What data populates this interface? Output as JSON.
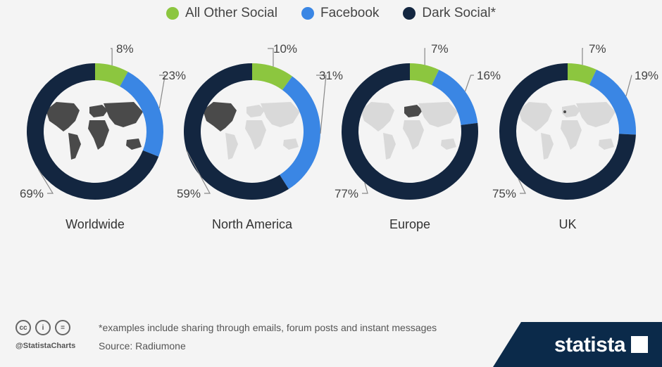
{
  "legend": [
    {
      "label": "All Other Social",
      "color": "#8cc63f"
    },
    {
      "label": "Facebook",
      "color": "#3a86e4"
    },
    {
      "label": "Dark Social*",
      "color": "#132640"
    }
  ],
  "chart_data": {
    "type": "pie",
    "subtype": "donut",
    "series_names": [
      "All Other Social",
      "Facebook",
      "Dark Social*"
    ],
    "colors": [
      "#8cc63f",
      "#3a86e4",
      "#132640"
    ],
    "legend_position": "top",
    "charts": [
      {
        "region": "Worldwide",
        "values": [
          8,
          23,
          69
        ],
        "labels": [
          "8%",
          "23%",
          "69%"
        ]
      },
      {
        "region": "North America",
        "values": [
          10,
          31,
          59
        ],
        "labels": [
          "10%",
          "31%",
          "59%"
        ]
      },
      {
        "region": "Europe",
        "values": [
          7,
          16,
          77
        ],
        "labels": [
          "7%",
          "16%",
          "77%"
        ]
      },
      {
        "region": "UK",
        "values": [
          7,
          19,
          75
        ],
        "labels": [
          "7%",
          "19%",
          "75%"
        ]
      }
    ]
  },
  "footer": {
    "note": "*examples include sharing through emails, forum posts and instant messages",
    "source": "Source: Radiumone",
    "handle": "@StatistaCharts",
    "brand": "statista",
    "cc_icons": [
      "cc",
      "i",
      "="
    ]
  },
  "colors": {
    "background": "#f4f4f4",
    "brand_band": "#0b2a4a",
    "map_light": "#d9d9d9",
    "map_dark": "#4a4a4a"
  }
}
